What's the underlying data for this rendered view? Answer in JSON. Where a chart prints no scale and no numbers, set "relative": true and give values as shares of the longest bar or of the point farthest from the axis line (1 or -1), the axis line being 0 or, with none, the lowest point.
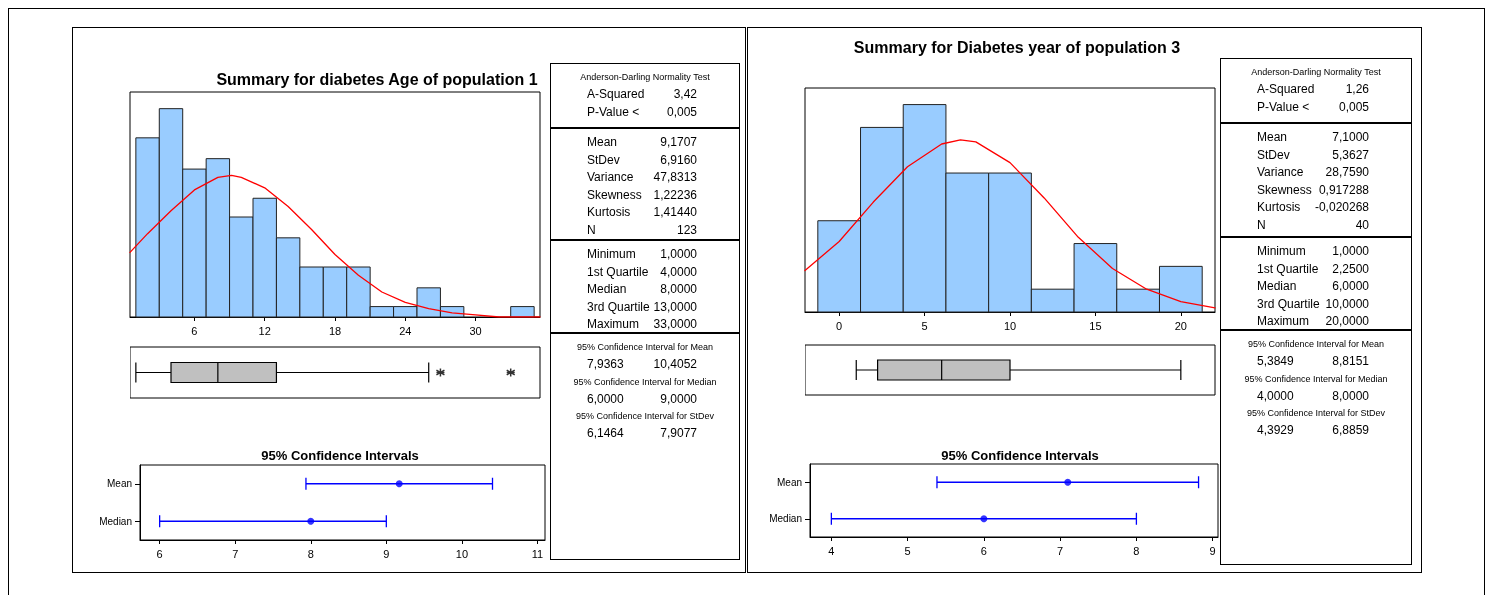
{
  "chart_data": [
    {
      "type": "histogram",
      "title": "Summary for diabetes Age of population 1",
      "relative": true,
      "bins": [
        1,
        3,
        5,
        7,
        9,
        11,
        13,
        15,
        17,
        19,
        21,
        23,
        25,
        27,
        29,
        31,
        33,
        35
      ],
      "values": [
        0.86,
        1,
        0.71,
        0.76,
        0.48,
        0.57,
        0.38,
        0.24,
        0.24,
        0.24,
        0.05,
        0.05,
        0.14,
        0.05,
        0,
        0,
        0.05
      ],
      "color": "#99ccff",
      "xlim": [
        0.5,
        35.5
      ],
      "xticks": [
        6,
        12,
        18,
        24,
        30
      ],
      "tick_labels": "x",
      "marker": "none",
      "line_style": "solid",
      "series": [
        {
          "type": "line",
          "color": "#ff0000",
          "x": [
            0.5,
            2,
            4,
            6,
            8,
            9.17,
            10,
            12,
            14,
            16,
            18,
            20,
            22,
            24,
            26,
            28,
            30,
            32,
            35.5
          ],
          "values": [
            0.31,
            0.4,
            0.51,
            0.61,
            0.67,
            0.68,
            0.67,
            0.62,
            0.53,
            0.42,
            0.3,
            0.2,
            0.12,
            0.07,
            0.04,
            0.02,
            0.01,
            0,
            0
          ]
        }
      ]
    },
    {
      "type": "box",
      "categories": [
        null
      ],
      "orientation": "horizontal",
      "color": "#c0c0c0",
      "xlim": [
        0.5,
        35.5
      ],
      "tick_labels": false,
      "boxes": [
        {
          "low": 1,
          "q1": 4,
          "median": 8,
          "q3": 13,
          "high": 26,
          "outliers": [
            27,
            33
          ]
        }
      ]
    },
    {
      "type": "scatter",
      "title": "95% Confidence Intervals",
      "orientation": "horizontal",
      "categories": [
        "Mean",
        "Median"
      ],
      "values": [
        9.1707,
        8
      ],
      "errors": [
        [
          7.9363,
          10.4052
        ],
        [
          6,
          9
        ]
      ],
      "color": "#0000ff",
      "marker": "circle",
      "xlim": [
        5.74,
        11.1
      ],
      "xticks": [
        6,
        7,
        8,
        9,
        10,
        11
      ]
    },
    {
      "type": "other",
      "annotations": [
        "Anderson-Darling Normality Test",
        "A-Squared 3,42",
        "P-Value < 0,005"
      ]
    },
    {
      "type": "other",
      "annotations": [
        "Mean 9,1707",
        "StDev 6,9160",
        "Variance 47,8313",
        "Skewness 1,22236",
        "Kurtosis 1,41440",
        "N 123"
      ]
    },
    {
      "type": "other",
      "annotations": [
        "Minimum 1,0000",
        "1st Quartile 4,0000",
        "Median 8,0000",
        "3rd Quartile 13,0000",
        "Maximum 33,0000"
      ]
    },
    {
      "type": "other",
      "annotations": [
        "95% Confidence Interval for Mean",
        "7,9363 10,4052",
        "95% Confidence Interval for Median",
        "6,0000 9,0000",
        "95% Confidence Interval for StDev",
        "6,1464 7,9077"
      ]
    },
    {
      "type": "histogram",
      "title": "Summary for Diabetes year of population 3",
      "relative": true,
      "bins": [
        -1.25,
        1.25,
        3.75,
        6.25,
        8.75,
        11.25,
        13.75,
        16.25,
        18.75,
        21.25
      ],
      "values": [
        0.44,
        0.89,
        1,
        0.67,
        0.67,
        0.11,
        0.33,
        0.11,
        0.22
      ],
      "color": "#99ccff",
      "xlim": [
        -2,
        22
      ],
      "xticks": [
        0,
        5,
        10,
        15,
        20
      ],
      "tick_labels": "x",
      "marker": "none",
      "line_style": "solid",
      "series": [
        {
          "type": "line",
          "color": "#ff0000",
          "x": [
            -2,
            0,
            2,
            4,
            6,
            7.1,
            8,
            10,
            12,
            14,
            16,
            18,
            20,
            22
          ],
          "values": [
            0.2,
            0.34,
            0.53,
            0.7,
            0.81,
            0.83,
            0.82,
            0.72,
            0.55,
            0.36,
            0.21,
            0.11,
            0.05,
            0.02
          ]
        }
      ]
    },
    {
      "type": "box",
      "categories": [
        null
      ],
      "orientation": "horizontal",
      "color": "#c0c0c0",
      "xlim": [
        -2,
        22
      ],
      "tick_labels": false,
      "boxes": [
        {
          "low": 1,
          "q1": 2.25,
          "median": 6,
          "q3": 10,
          "high": 20
        }
      ]
    },
    {
      "type": "scatter",
      "title": "95% Confidence Intervals",
      "orientation": "horizontal",
      "categories": [
        "Mean",
        "Median"
      ],
      "values": [
        7.1,
        6
      ],
      "errors": [
        [
          5.3849,
          8.8151
        ],
        [
          4,
          8
        ]
      ],
      "color": "#0000ff",
      "marker": "circle",
      "xlim": [
        3.72,
        9.07
      ],
      "xticks": [
        4,
        5,
        6,
        7,
        8,
        9
      ]
    },
    {
      "type": "other",
      "annotations": [
        "Anderson-Darling Normality Test",
        "A-Squared 1,26",
        "P-Value < 0,005"
      ]
    },
    {
      "type": "other",
      "annotations": [
        "Mean 7,1000",
        "StDev 5,3627",
        "Variance 28,7590",
        "Skewness 0,917288",
        "Kurtosis -0,020268",
        "N 40"
      ]
    },
    {
      "type": "other",
      "annotations": [
        "Minimum 1,0000",
        "1st Quartile 2,2500",
        "Median 6,0000",
        "3rd Quartile 10,0000",
        "Maximum 20,0000"
      ]
    },
    {
      "type": "other",
      "annotations": [
        "95% Confidence Interval for Mean",
        "5,3849 8,8151",
        "95% Confidence Interval for Median",
        "4,0000 8,0000",
        "95% Confidence Interval for StDev",
        "4,3929 6,8859"
      ]
    }
  ]
}
